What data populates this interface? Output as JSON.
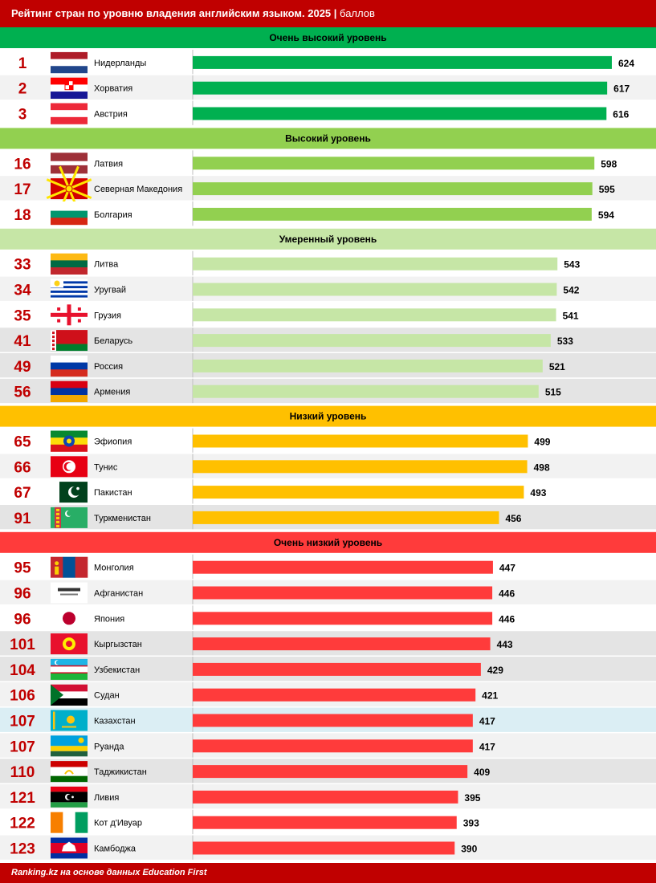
{
  "header": {
    "title": "Рейтинг стран по уровню владения английским языком. 2025",
    "unit": "баллов"
  },
  "footer": {
    "source": "Ranking.kz на основе данных Education First"
  },
  "colors": {
    "header": "#c00000",
    "rank": "#c00000",
    "very_high": "#00b050",
    "high": "#92d050",
    "moderate": "#c6e6a6",
    "low": "#ffc000",
    "very_low": "#ff3b3b",
    "row_alt": "#f2f2f2",
    "row_gray": "#e4e4e4",
    "row_highlight": "#dbeef4"
  },
  "chart_data": {
    "type": "bar",
    "orientation": "horizontal",
    "title": "Рейтинг стран по уровню владения английским языком. 2025",
    "unit": "баллов",
    "xlim": [
      0,
      624
    ],
    "groups": [
      {
        "name": "Очень высокий уровень",
        "color": "#00b050",
        "rows": [
          {
            "rank": "1",
            "country": "Нидерланды",
            "value": 624,
            "flag": "netherlands-flag"
          },
          {
            "rank": "2",
            "country": "Хорватия",
            "value": 617,
            "flag": "croatia-flag"
          },
          {
            "rank": "3",
            "country": "Австрия",
            "value": 616,
            "flag": "austria-flag"
          }
        ]
      },
      {
        "name": "Высокий уровень",
        "color": "#92d050",
        "rows": [
          {
            "rank": "16",
            "country": "Латвия",
            "value": 598,
            "flag": "latvia-flag"
          },
          {
            "rank": "17",
            "country": "Северная Македония",
            "value": 595,
            "flag": "north-macedonia-flag"
          },
          {
            "rank": "18",
            "country": "Болгария",
            "value": 594,
            "flag": "bulgaria-flag"
          }
        ]
      },
      {
        "name": "Умеренный уровень",
        "color": "#c6e6a6",
        "rows": [
          {
            "rank": "33",
            "country": "Литва",
            "value": 543,
            "flag": "lithuania-flag"
          },
          {
            "rank": "34",
            "country": "Уругвай",
            "value": 542,
            "flag": "uruguay-flag"
          },
          {
            "rank": "35",
            "country": "Грузия",
            "value": 541,
            "flag": "georgia-flag"
          },
          {
            "rank": "41",
            "country": "Беларусь",
            "value": 533,
            "flag": "belarus-flag",
            "highlight": "gray"
          },
          {
            "rank": "49",
            "country": "Россия",
            "value": 521,
            "flag": "russia-flag",
            "highlight": "gray"
          },
          {
            "rank": "56",
            "country": "Армения",
            "value": 515,
            "flag": "armenia-flag",
            "highlight": "gray"
          }
        ]
      },
      {
        "name": "Низкий уровень",
        "color": "#ffc000",
        "rows": [
          {
            "rank": "65",
            "country": "Эфиопия",
            "value": 499,
            "flag": "ethiopia-flag"
          },
          {
            "rank": "66",
            "country": "Тунис",
            "value": 498,
            "flag": "tunisia-flag"
          },
          {
            "rank": "67",
            "country": "Пакистан",
            "value": 493,
            "flag": "pakistan-flag"
          },
          {
            "rank": "91",
            "country": "Туркменистан",
            "value": 456,
            "flag": "turkmenistan-flag",
            "highlight": "gray"
          }
        ]
      },
      {
        "name": "Очень низкий уровень",
        "color": "#ff3b3b",
        "rows": [
          {
            "rank": "95",
            "country": "Монголия",
            "value": 447,
            "flag": "mongolia-flag"
          },
          {
            "rank": "96",
            "country": "Афганистан",
            "value": 446,
            "flag": "afghanistan-flag"
          },
          {
            "rank": "96",
            "country": "Япония",
            "value": 446,
            "flag": "japan-flag"
          },
          {
            "rank": "101",
            "country": "Кыргызстан",
            "value": 443,
            "flag": "kyrgyzstan-flag",
            "highlight": "gray"
          },
          {
            "rank": "104",
            "country": "Узбекистан",
            "value": 429,
            "flag": "uzbekistan-flag",
            "highlight": "gray"
          },
          {
            "rank": "106",
            "country": "Судан",
            "value": 421,
            "flag": "sudan-flag"
          },
          {
            "rank": "107",
            "country": "Казахстан",
            "value": 417,
            "flag": "kazakhstan-flag",
            "highlight": "blue"
          },
          {
            "rank": "107",
            "country": "Руанда",
            "value": 417,
            "flag": "rwanda-flag"
          },
          {
            "rank": "110",
            "country": "Таджикистан",
            "value": 409,
            "flag": "tajikistan-flag",
            "highlight": "gray"
          },
          {
            "rank": "121",
            "country": "Ливия",
            "value": 395,
            "flag": "libya-flag"
          },
          {
            "rank": "122",
            "country": "Кот д'Ивуар",
            "value": 393,
            "flag": "ivory-coast-flag"
          },
          {
            "rank": "123",
            "country": "Камбоджа",
            "value": 390,
            "flag": "cambodia-flag"
          }
        ]
      }
    ]
  }
}
